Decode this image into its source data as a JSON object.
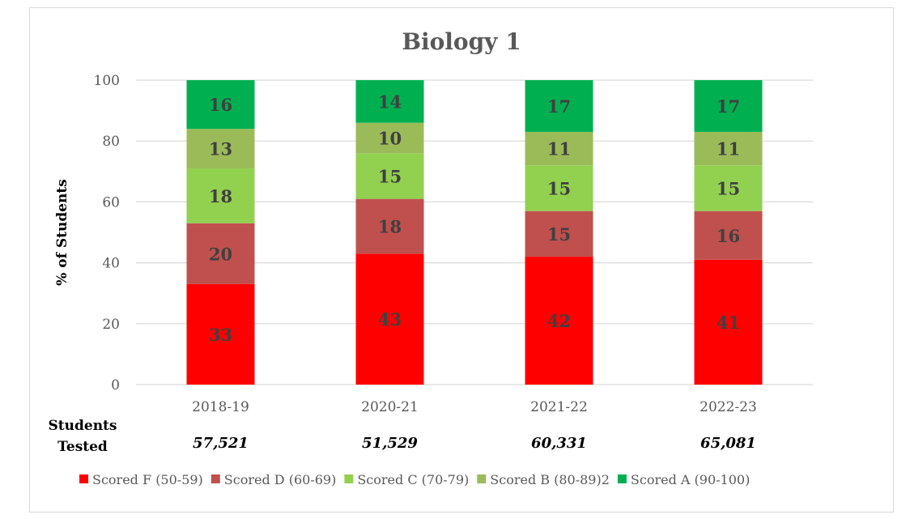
{
  "chart_data": {
    "type": "bar",
    "stacked": true,
    "title": "Biology 1",
    "ylabel": "% of Students",
    "xlabel": "",
    "ylim": [
      0,
      100
    ],
    "yticks": [
      "0",
      "20",
      "40",
      "60",
      "80",
      "100"
    ],
    "grid": true,
    "legend_position": "bottom",
    "categories": [
      "2018-19",
      "2020-21",
      "2021-22",
      "2022-23"
    ],
    "series": [
      {
        "name": "Scored F (50-59)",
        "color": "#ff0000",
        "values": [
          33,
          43,
          42,
          41
        ]
      },
      {
        "name": "Scored D (60-69)",
        "color": "#c0504d",
        "values": [
          20,
          18,
          15,
          16
        ]
      },
      {
        "name": "Scored C (70-79)",
        "color": "#92d050",
        "values": [
          18,
          15,
          15,
          15
        ]
      },
      {
        "name": "Scored B (80-89)2",
        "color": "#9bbb59",
        "values": [
          13,
          10,
          11,
          11
        ]
      },
      {
        "name": "Scored A (90-100)",
        "color": "#00b050",
        "values": [
          16,
          14,
          17,
          17
        ]
      }
    ],
    "students_tested": {
      "label_line1": "Students",
      "label_line2": "Tested",
      "values": [
        "57,521",
        "51,529",
        "60,331",
        "65,081"
      ]
    }
  }
}
